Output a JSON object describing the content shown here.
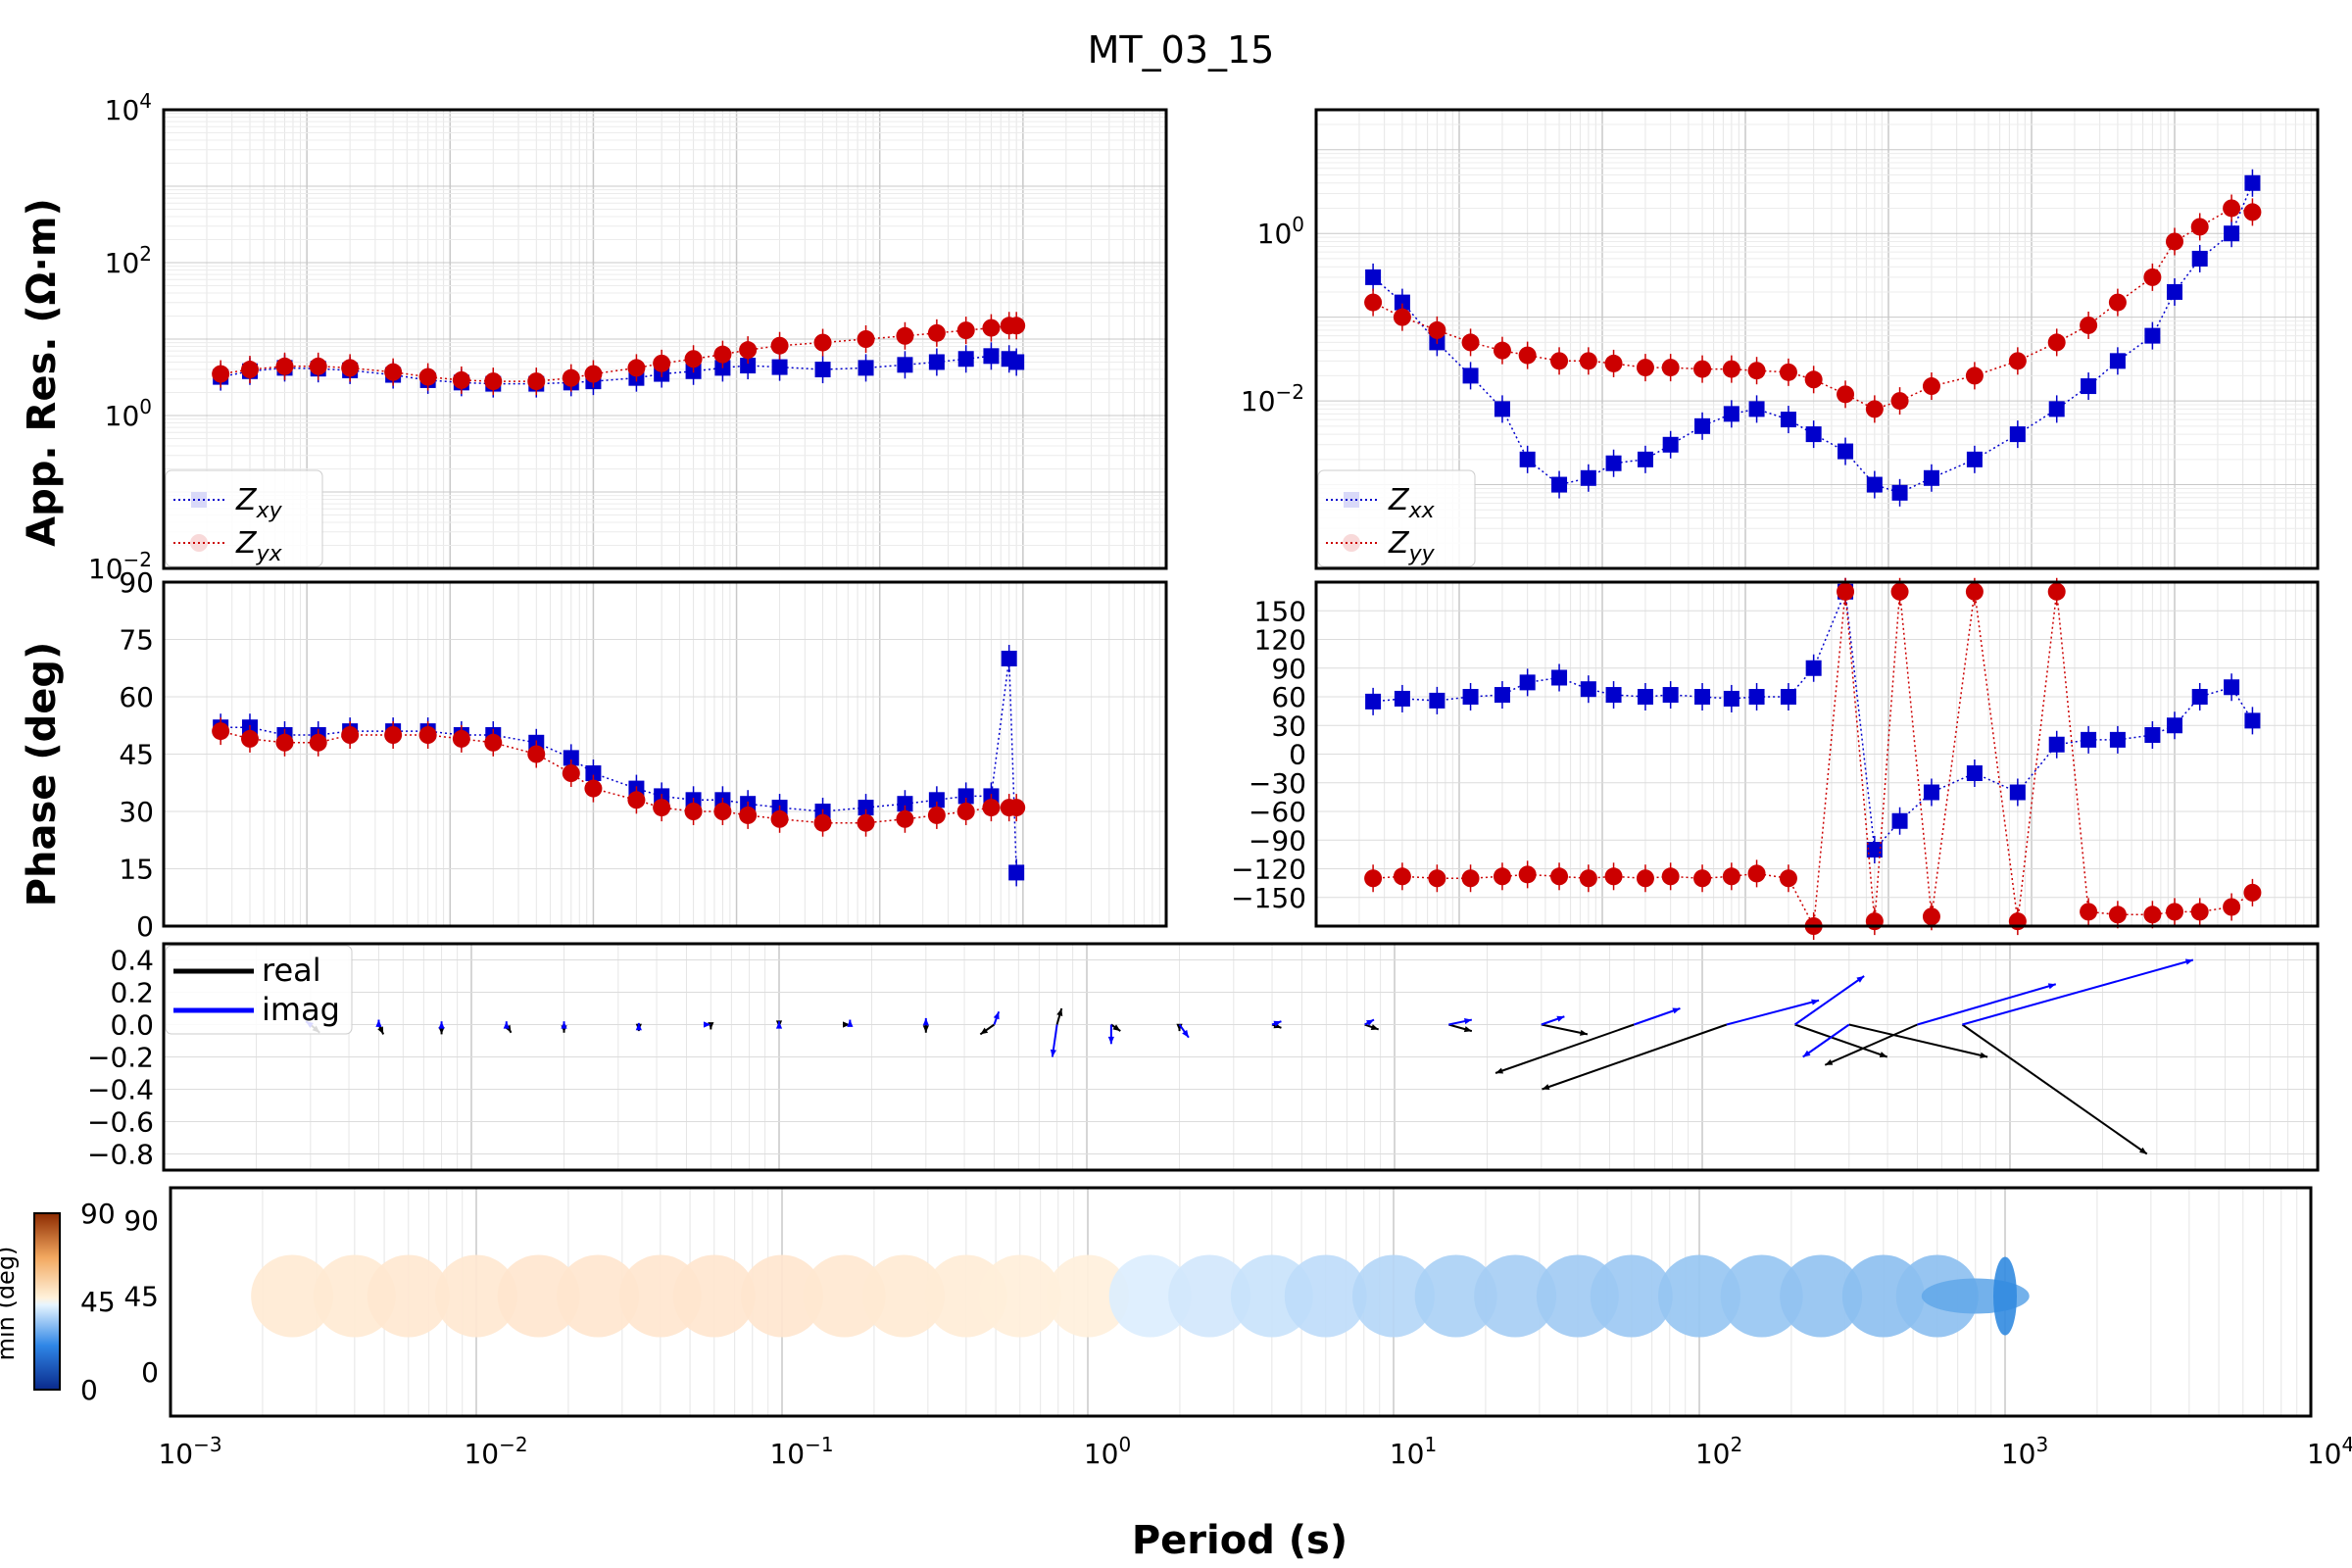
{
  "title": "MT_03_15",
  "colors": {
    "xy": "#0000cc",
    "yx": "#cc0000",
    "real_arrow": "#000000",
    "imag_arrow": "#0000ff",
    "grid": "#d0d0d0"
  },
  "chart_data": [
    {
      "id": "rho_offdiag",
      "type": "scatter",
      "ylabel": "App. Res. (Ω·m)",
      "x_scale": "log",
      "y_scale": "log",
      "xlim": [
        0.001,
        10000
      ],
      "ylim": [
        0.01,
        10000
      ],
      "y_tick_labels": [
        "10^-2",
        "10^0",
        "10^2",
        "10^4"
      ],
      "legend": [
        "Zxy",
        "Zyx"
      ],
      "legend_position": "lower-left",
      "series": [
        {
          "name": "Zxy",
          "marker": "square",
          "x": [
            0.0025,
            0.004,
            0.007,
            0.012,
            0.02,
            0.04,
            0.07,
            0.12,
            0.2,
            0.4,
            0.7,
            1.0,
            2,
            3,
            5,
            8,
            12,
            20,
            40,
            80,
            150,
            250,
            400,
            600,
            800,
            900
          ],
          "y": [
            3.2,
            3.8,
            4.2,
            4.1,
            3.9,
            3.4,
            2.9,
            2.7,
            2.6,
            2.6,
            2.7,
            2.8,
            3.1,
            3.5,
            3.8,
            4.2,
            4.5,
            4.3,
            4.0,
            4.2,
            4.6,
            5.0,
            5.5,
            6.0,
            5.5,
            5.0
          ]
        },
        {
          "name": "Zyx",
          "marker": "circle",
          "x": [
            0.0025,
            0.004,
            0.007,
            0.012,
            0.02,
            0.04,
            0.07,
            0.12,
            0.2,
            0.4,
            0.7,
            1.0,
            2,
            3,
            5,
            8,
            12,
            20,
            40,
            80,
            150,
            250,
            400,
            600,
            800,
            900
          ],
          "y": [
            3.5,
            4.0,
            4.4,
            4.4,
            4.2,
            3.7,
            3.2,
            2.9,
            2.8,
            2.8,
            3.1,
            3.5,
            4.2,
            4.8,
            5.5,
            6.3,
            7.2,
            8.2,
            9.0,
            10.0,
            11.0,
            12.0,
            13.0,
            14.0,
            15.0,
            15.0
          ]
        }
      ]
    },
    {
      "id": "rho_diag",
      "type": "scatter",
      "x_scale": "log",
      "y_scale": "log",
      "xlim": [
        0.001,
        10000
      ],
      "ylim": [
        0.0001,
        30
      ],
      "y_tick_labels": [
        "10^-2",
        "10^0"
      ],
      "legend": [
        "Zxx",
        "Zyy"
      ],
      "legend_position": "lower-left",
      "series": [
        {
          "name": "Zxx",
          "marker": "square",
          "x": [
            0.0025,
            0.004,
            0.007,
            0.012,
            0.02,
            0.03,
            0.05,
            0.08,
            0.12,
            0.2,
            0.3,
            0.5,
            0.8,
            1.2,
            2,
            3,
            5,
            8,
            12,
            20,
            40,
            80,
            150,
            250,
            400,
            700,
            1000,
            1500,
            2500,
            3500
          ],
          "y": [
            0.3,
            0.15,
            0.05,
            0.02,
            0.008,
            0.002,
            0.001,
            0.0012,
            0.0018,
            0.002,
            0.003,
            0.005,
            0.007,
            0.008,
            0.006,
            0.004,
            0.0025,
            0.001,
            0.0008,
            0.0012,
            0.002,
            0.004,
            0.008,
            0.015,
            0.03,
            0.06,
            0.2,
            0.5,
            1.0,
            4.0
          ]
        },
        {
          "name": "Zyy",
          "marker": "circle",
          "x": [
            0.0025,
            0.004,
            0.007,
            0.012,
            0.02,
            0.03,
            0.05,
            0.08,
            0.12,
            0.2,
            0.3,
            0.5,
            0.8,
            1.2,
            2,
            3,
            5,
            8,
            12,
            20,
            40,
            80,
            150,
            250,
            400,
            700,
            1000,
            1500,
            2500,
            3500
          ],
          "y": [
            0.15,
            0.1,
            0.07,
            0.05,
            0.04,
            0.035,
            0.03,
            0.03,
            0.028,
            0.025,
            0.025,
            0.024,
            0.024,
            0.023,
            0.022,
            0.018,
            0.012,
            0.008,
            0.01,
            0.015,
            0.02,
            0.03,
            0.05,
            0.08,
            0.15,
            0.3,
            0.8,
            1.2,
            2.0,
            1.8
          ]
        }
      ]
    },
    {
      "id": "phase_offdiag",
      "type": "scatter",
      "ylabel": "Phase (deg)",
      "x_scale": "log",
      "xlim": [
        0.001,
        10000
      ],
      "ylim": [
        0,
        90
      ],
      "y_ticks": [
        0,
        15,
        30,
        45,
        60,
        75,
        90
      ],
      "series": [
        {
          "name": "Zxy",
          "marker": "square",
          "x": [
            0.0025,
            0.004,
            0.007,
            0.012,
            0.02,
            0.04,
            0.07,
            0.12,
            0.2,
            0.4,
            0.7,
            1.0,
            2,
            3,
            5,
            8,
            12,
            20,
            40,
            80,
            150,
            250,
            400,
            600,
            800,
            900
          ],
          "y": [
            52,
            52,
            50,
            50,
            51,
            51,
            51,
            50,
            50,
            48,
            44,
            40,
            36,
            34,
            33,
            33,
            32,
            31,
            30,
            31,
            32,
            33,
            34,
            34,
            70,
            14
          ]
        },
        {
          "name": "Zyx",
          "marker": "circle",
          "x": [
            0.0025,
            0.004,
            0.007,
            0.012,
            0.02,
            0.04,
            0.07,
            0.12,
            0.2,
            0.4,
            0.7,
            1.0,
            2,
            3,
            5,
            8,
            12,
            20,
            40,
            80,
            150,
            250,
            400,
            600,
            800,
            900
          ],
          "y": [
            51,
            49,
            48,
            48,
            50,
            50,
            50,
            49,
            48,
            45,
            40,
            36,
            33,
            31,
            30,
            30,
            29,
            28,
            27,
            27,
            28,
            29,
            30,
            31,
            31,
            31
          ]
        }
      ]
    },
    {
      "id": "phase_diag",
      "type": "scatter",
      "x_scale": "log",
      "xlim": [
        0.001,
        10000
      ],
      "ylim": [
        -180,
        180
      ],
      "y_ticks": [
        -150,
        -120,
        -90,
        -60,
        -30,
        0,
        30,
        60,
        90,
        120,
        150
      ],
      "series": [
        {
          "name": "Zxx",
          "marker": "square",
          "x": [
            0.0025,
            0.004,
            0.007,
            0.012,
            0.02,
            0.03,
            0.05,
            0.08,
            0.12,
            0.2,
            0.3,
            0.5,
            0.8,
            1.2,
            2,
            3,
            5,
            8,
            12,
            20,
            40,
            80,
            150,
            250,
            400,
            700,
            1000,
            1500,
            2500,
            3500
          ],
          "y": [
            55,
            58,
            56,
            60,
            62,
            75,
            80,
            68,
            62,
            60,
            62,
            60,
            58,
            60,
            60,
            90,
            170,
            -100,
            -70,
            -40,
            -20,
            -40,
            10,
            15,
            15,
            20,
            30,
            60,
            70,
            35
          ]
        },
        {
          "name": "Zyy",
          "marker": "circle",
          "x": [
            0.0025,
            0.004,
            0.007,
            0.012,
            0.02,
            0.03,
            0.05,
            0.08,
            0.12,
            0.2,
            0.3,
            0.5,
            0.8,
            1.2,
            2,
            3,
            5,
            8,
            12,
            20,
            40,
            80,
            150,
            250,
            400,
            700,
            1000,
            1500,
            2500,
            3500
          ],
          "y": [
            -130,
            -128,
            -130,
            -130,
            -128,
            -126,
            -128,
            -130,
            -128,
            -130,
            -128,
            -130,
            -128,
            -125,
            -130,
            -180,
            170,
            -175,
            170,
            -170,
            170,
            -175,
            170,
            -165,
            -168,
            -168,
            -165,
            -165,
            -160,
            -145
          ]
        }
      ]
    },
    {
      "id": "induction_arrows",
      "type": "scatter",
      "x_scale": "log",
      "xlim": [
        0.001,
        10000
      ],
      "ylim": [
        -0.9,
        0.5
      ],
      "y_ticks": [
        -0.8,
        -0.6,
        -0.4,
        -0.2,
        0.0,
        0.2,
        0.4
      ],
      "legend": [
        "real",
        "imag"
      ],
      "legend_position": "top-left",
      "series": [
        {
          "name": "real",
          "x": [
            0.003,
            0.005,
            0.008,
            0.013,
            0.02,
            0.035,
            0.06,
            0.1,
            0.17,
            0.3,
            0.5,
            0.8,
            1.2,
            2,
            4,
            8,
            15,
            30,
            60,
            120,
            200,
            300,
            500,
            700
          ],
          "u": [
            0.02,
            0.01,
            0.0,
            0.01,
            0.0,
            0.0,
            0.0,
            0.0,
            0.0,
            0.0,
            -0.03,
            0.01,
            0.02,
            0.0,
            0.02,
            0.03,
            0.05,
            0.1,
            -0.3,
            -0.4,
            0.2,
            0.3,
            -0.2,
            0.4
          ],
          "v": [
            -0.05,
            -0.06,
            -0.06,
            -0.05,
            -0.05,
            -0.04,
            -0.03,
            -0.02,
            0.0,
            -0.05,
            -0.06,
            0.1,
            -0.04,
            -0.04,
            -0.02,
            -0.03,
            -0.04,
            -0.06,
            -0.3,
            -0.4,
            -0.2,
            -0.2,
            -0.25,
            -0.8
          ]
        },
        {
          "name": "imag",
          "x": [
            0.003,
            0.005,
            0.008,
            0.013,
            0.02,
            0.035,
            0.06,
            0.1,
            0.17,
            0.3,
            0.5,
            0.8,
            1.2,
            2,
            4,
            8,
            15,
            30,
            60,
            120,
            200,
            300,
            500,
            700
          ],
          "u": [
            -0.01,
            0.0,
            0.0,
            0.0,
            0.0,
            0.0,
            0.0,
            0.0,
            0.0,
            0.0,
            0.01,
            -0.01,
            0.0,
            0.02,
            0.02,
            0.02,
            0.05,
            0.05,
            0.1,
            0.2,
            0.15,
            -0.1,
            0.3,
            0.5
          ],
          "v": [
            0.02,
            0.03,
            0.02,
            0.02,
            0.02,
            0.01,
            0.0,
            0.02,
            0.03,
            0.04,
            0.08,
            -0.2,
            -0.12,
            -0.08,
            0.02,
            0.03,
            0.03,
            0.05,
            0.1,
            0.15,
            0.3,
            -0.2,
            0.25,
            0.4
          ]
        }
      ]
    },
    {
      "id": "phase_tensor",
      "type": "scatter",
      "xlabel": "Period (s)",
      "x_scale": "log",
      "xlim": [
        0.001,
        10000
      ],
      "x_tick_labels": [
        "10^-3",
        "10^-2",
        "10^-1",
        "10^0",
        "10^1",
        "10^2",
        "10^3",
        "10^4"
      ],
      "y_ticks": [
        0,
        45,
        90
      ],
      "colorbar_ticks": [
        0,
        45,
        90
      ],
      "colorbar_label": "min (deg)",
      "ellipses": {
        "x": [
          0.0025,
          0.004,
          0.006,
          0.01,
          0.016,
          0.025,
          0.04,
          0.06,
          0.1,
          0.16,
          0.25,
          0.4,
          0.6,
          1.0,
          1.6,
          2.5,
          4,
          6,
          10,
          16,
          25,
          40,
          60,
          100,
          160,
          250,
          400,
          600,
          800,
          1000
        ],
        "phimin": [
          48,
          48,
          49,
          49,
          50,
          50,
          50,
          50,
          50,
          49,
          48,
          47,
          46,
          45,
          44,
          42,
          40,
          38,
          36,
          34,
          33,
          32,
          31,
          30,
          30,
          29,
          28,
          28,
          20,
          10
        ]
      }
    }
  ]
}
